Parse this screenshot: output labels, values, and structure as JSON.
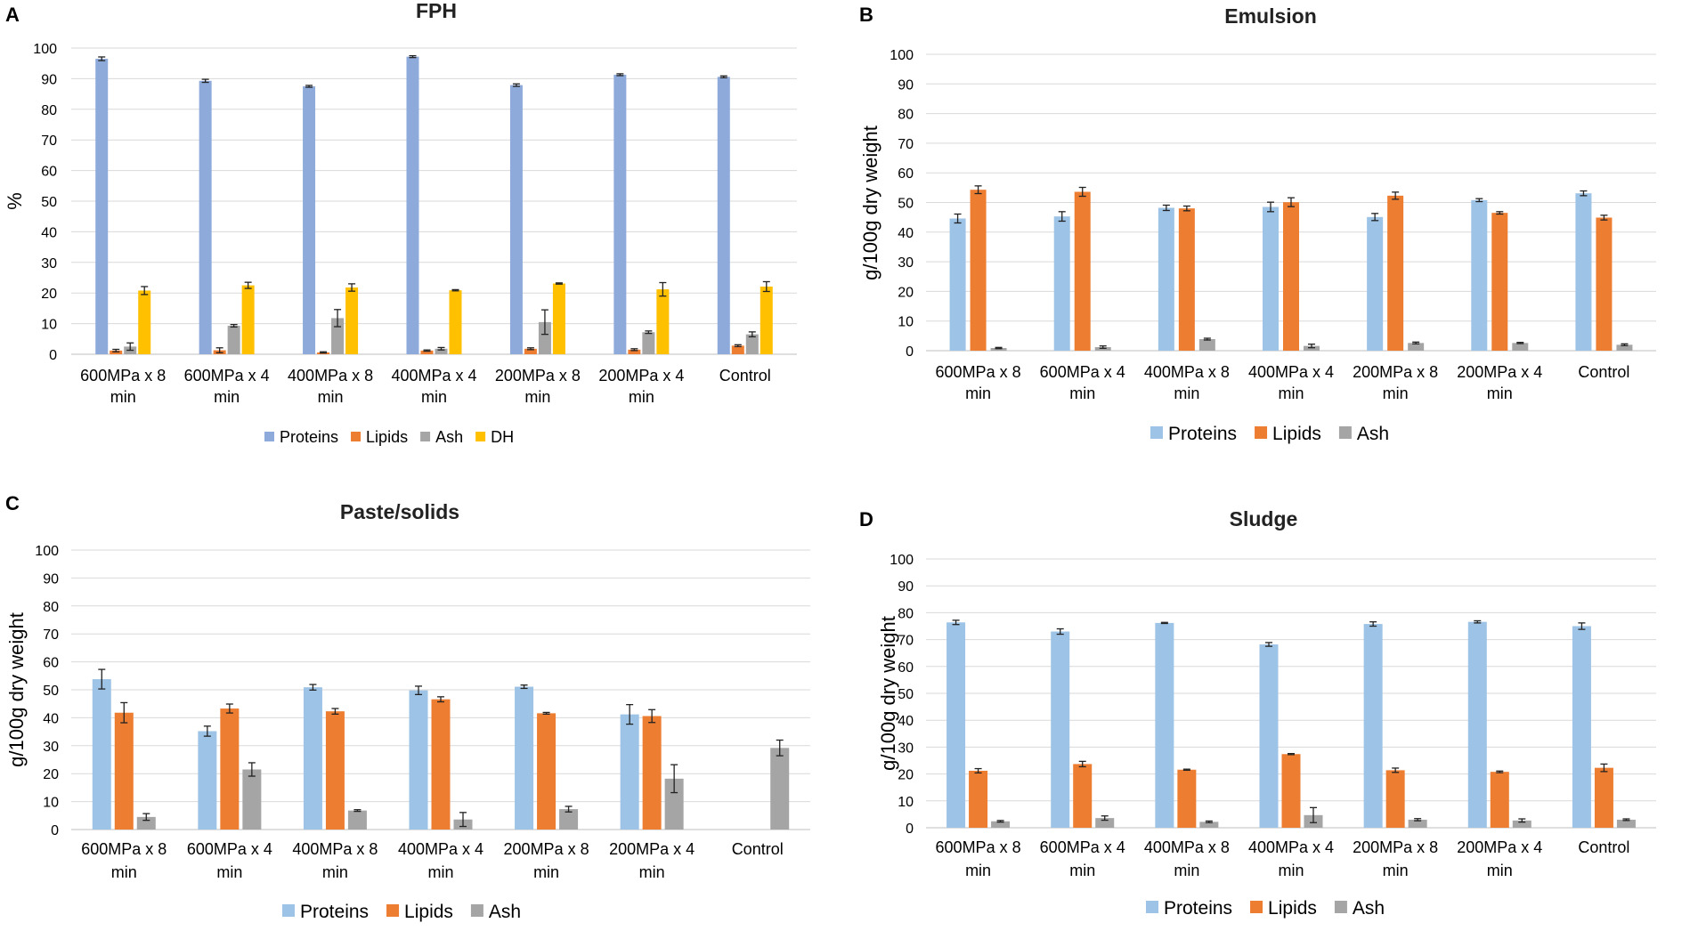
{
  "chart_data": [
    {
      "panel": "A",
      "type": "bar",
      "title": "FPH",
      "ylabel": "%",
      "xlabel": "",
      "ylim": [
        0,
        100
      ],
      "yticks": [
        0,
        10,
        20,
        30,
        40,
        50,
        60,
        70,
        80,
        90,
        100
      ],
      "grid": true,
      "legend": "bottom",
      "categories": [
        [
          "600MPa x 8",
          "min"
        ],
        [
          "600MPa x 4",
          "min"
        ],
        [
          "400MPa x 8",
          "min"
        ],
        [
          "400MPa x 4",
          "min"
        ],
        [
          "200MPa x 8",
          "min"
        ],
        [
          "200MPa x 4",
          "min"
        ],
        [
          "Control"
        ]
      ],
      "series": [
        {
          "name": "Proteins",
          "color": "#8eaadb",
          "values": [
            96.5,
            89.3,
            87.5,
            97.2,
            87.9,
            91.3,
            90.6
          ],
          "errors": [
            0.6,
            0.5,
            0.3,
            0.3,
            0.4,
            0.3,
            0.3
          ]
        },
        {
          "name": "Lipids",
          "color": "#ed7d31",
          "values": [
            1.2,
            1.3,
            0.6,
            1.2,
            1.8,
            1.5,
            2.8
          ],
          "errors": [
            0.4,
            0.8,
            0.2,
            0.2,
            0.3,
            0.3,
            0.3
          ]
        },
        {
          "name": "Ash",
          "color": "#a5a5a5",
          "values": [
            2.5,
            9.3,
            11.8,
            1.8,
            10.5,
            7.2,
            6.5
          ],
          "errors": [
            1.2,
            0.4,
            2.8,
            0.4,
            4.0,
            0.4,
            0.8
          ]
        },
        {
          "name": "DH",
          "color": "#ffc000",
          "values": [
            20.8,
            22.5,
            21.8,
            20.9,
            23.1,
            21.2,
            22.1
          ],
          "errors": [
            1.3,
            1.0,
            1.2,
            0.2,
            0.2,
            2.2,
            1.6
          ]
        }
      ]
    },
    {
      "panel": "B",
      "type": "bar",
      "title": "Emulsion",
      "ylabel": "g/100g dry weight",
      "xlabel": "",
      "ylim": [
        0,
        100
      ],
      "yticks": [
        0,
        10,
        20,
        30,
        40,
        50,
        60,
        70,
        80,
        90,
        100
      ],
      "grid": true,
      "legend": "bottom",
      "categories": [
        [
          "600MPa x 8",
          "min"
        ],
        [
          "600MPa x 4",
          "min"
        ],
        [
          "400MPa x 8",
          "min"
        ],
        [
          "400MPa x 4",
          "min"
        ],
        [
          "200MPa x 8",
          "min"
        ],
        [
          "200MPa x 4",
          "min"
        ],
        [
          "Control"
        ]
      ],
      "series": [
        {
          "name": "Proteins",
          "color": "#9dc3e6",
          "values": [
            44.6,
            45.3,
            48.2,
            48.5,
            45.1,
            50.8,
            53.1
          ],
          "errors": [
            1.5,
            1.6,
            0.9,
            1.6,
            1.2,
            0.5,
            0.8
          ]
        },
        {
          "name": "Lipids",
          "color": "#ed7d31",
          "values": [
            54.3,
            53.6,
            48.0,
            50.1,
            52.3,
            46.5,
            44.9
          ],
          "errors": [
            1.3,
            1.5,
            0.8,
            1.5,
            1.2,
            0.4,
            0.8
          ]
        },
        {
          "name": "Ash",
          "color": "#a5a5a5",
          "values": [
            0.9,
            1.2,
            3.9,
            1.6,
            2.6,
            2.6,
            2.0
          ],
          "errors": [
            0.2,
            0.4,
            0.3,
            0.6,
            0.3,
            0.2,
            0.3
          ]
        }
      ]
    },
    {
      "panel": "C",
      "type": "bar",
      "title": "Paste/solids",
      "ylabel": "g/100g dry weight",
      "xlabel": "",
      "ylim": [
        0,
        100
      ],
      "yticks": [
        0,
        10,
        20,
        30,
        40,
        50,
        60,
        70,
        80,
        90,
        100
      ],
      "grid": true,
      "legend": "bottom",
      "categories": [
        [
          "600MPa x 8",
          "min"
        ],
        [
          "600MPa x 4",
          "min"
        ],
        [
          "400MPa x 8",
          "min"
        ],
        [
          "400MPa x 4",
          "min"
        ],
        [
          "200MPa x 8",
          "min"
        ],
        [
          "200MPa x 4",
          "min"
        ],
        [
          "Control"
        ]
      ],
      "series": [
        {
          "name": "Proteins",
          "color": "#9dc3e6",
          "values": [
            53.8,
            35.2,
            50.9,
            49.8,
            51.1,
            41.2,
            null
          ],
          "errors": [
            3.5,
            1.8,
            1.0,
            1.5,
            0.6,
            3.5,
            null
          ]
        },
        {
          "name": "Lipids",
          "color": "#ed7d31",
          "values": [
            41.8,
            43.3,
            42.3,
            46.6,
            41.6,
            40.6,
            null
          ],
          "errors": [
            3.6,
            1.6,
            1.0,
            0.9,
            0.3,
            2.3,
            null
          ]
        },
        {
          "name": "Ash",
          "color": "#a5a5a5",
          "values": [
            4.5,
            21.5,
            6.8,
            3.6,
            7.3,
            18.2,
            29.2
          ],
          "errors": [
            1.2,
            2.4,
            0.3,
            2.5,
            1.0,
            5.0,
            2.8
          ]
        }
      ]
    },
    {
      "panel": "D",
      "type": "bar",
      "title": "Sludge",
      "ylabel": "g/100g dry weight",
      "xlabel": "",
      "ylim": [
        0,
        100
      ],
      "yticks": [
        0,
        10,
        20,
        30,
        40,
        50,
        60,
        70,
        80,
        90,
        100
      ],
      "grid": true,
      "legend": "bottom",
      "categories": [
        [
          "600MPa x 8",
          "min"
        ],
        [
          "600MPa x 4",
          "min"
        ],
        [
          "400MPa x 8",
          "min"
        ],
        [
          "400MPa x 4",
          "min"
        ],
        [
          "200MPa x 8",
          "min"
        ],
        [
          "200MPa x 4",
          "min"
        ],
        [
          "Control"
        ]
      ],
      "series": [
        {
          "name": "Proteins",
          "color": "#9dc3e6",
          "values": [
            76.4,
            73.0,
            76.2,
            68.2,
            75.8,
            76.6,
            75.0
          ],
          "errors": [
            0.8,
            1.0,
            0.2,
            0.7,
            0.8,
            0.4,
            1.2
          ]
        },
        {
          "name": "Lipids",
          "color": "#ed7d31",
          "values": [
            21.2,
            23.7,
            21.6,
            27.4,
            21.4,
            20.8,
            22.3
          ],
          "errors": [
            0.8,
            1.0,
            0.2,
            0.2,
            0.8,
            0.3,
            1.4
          ]
        },
        {
          "name": "Ash",
          "color": "#a5a5a5",
          "values": [
            2.4,
            3.6,
            2.2,
            4.7,
            3.0,
            2.7,
            3.0
          ],
          "errors": [
            0.3,
            0.8,
            0.3,
            2.8,
            0.4,
            0.6,
            0.3
          ]
        }
      ]
    }
  ]
}
